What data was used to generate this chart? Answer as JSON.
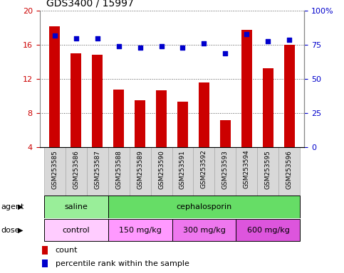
{
  "title": "GDS3400 / 15997",
  "samples": [
    "GSM253585",
    "GSM253586",
    "GSM253587",
    "GSM253588",
    "GSM253589",
    "GSM253590",
    "GSM253591",
    "GSM253592",
    "GSM253593",
    "GSM253594",
    "GSM253595",
    "GSM253596"
  ],
  "bar_values": [
    18.2,
    15.0,
    14.9,
    10.8,
    9.5,
    10.7,
    9.4,
    11.6,
    7.2,
    17.8,
    13.3,
    16.0
  ],
  "percentile_values": [
    82,
    80,
    80,
    74,
    73,
    74,
    73,
    76,
    69,
    83,
    78,
    79
  ],
  "bar_color": "#cc0000",
  "dot_color": "#0000cc",
  "ylim_left": [
    4,
    20
  ],
  "ylim_right": [
    0,
    100
  ],
  "yticks_left": [
    4,
    8,
    12,
    16,
    20
  ],
  "yticks_right": [
    0,
    25,
    50,
    75,
    100
  ],
  "ytick_labels_right": [
    "0",
    "25",
    "50",
    "75",
    "100%"
  ],
  "agent_groups": [
    {
      "label": "saline",
      "start": 0,
      "end": 3,
      "color": "#99ee99"
    },
    {
      "label": "cephalosporin",
      "start": 3,
      "end": 12,
      "color": "#66dd66"
    }
  ],
  "dose_groups": [
    {
      "label": "control",
      "start": 0,
      "end": 3,
      "color": "#ffccff"
    },
    {
      "label": "150 mg/kg",
      "start": 3,
      "end": 6,
      "color": "#ff99ff"
    },
    {
      "label": "300 mg/kg",
      "start": 6,
      "end": 9,
      "color": "#ee77ee"
    },
    {
      "label": "600 mg/kg",
      "start": 9,
      "end": 12,
      "color": "#dd55dd"
    }
  ],
  "agent_row_label": "agent",
  "dose_row_label": "dose",
  "legend_count_label": "count",
  "legend_pct_label": "percentile rank within the sample",
  "grid_dotted_color": "#555555",
  "tick_label_color_left": "#cc0000",
  "tick_label_color_right": "#0000cc",
  "bar_width": 0.5,
  "title_fontsize": 10,
  "xtick_bg_color": "#d8d8d8",
  "xtick_edge_color": "#aaaaaa"
}
